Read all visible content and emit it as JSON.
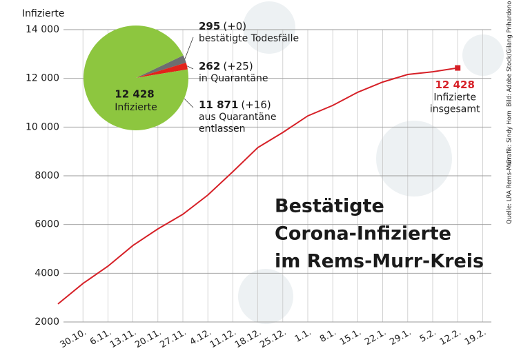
{
  "chart_data": [
    {
      "type": "line",
      "title": [
        "Bestätigte",
        "Corona-Infizierte",
        "im Rems-Murr-Kreis"
      ],
      "y_label": "Infizierte",
      "categories": [
        null,
        "30.10.",
        "6.11.",
        "13.11.",
        "20.11.",
        "27.11.",
        "4.12.",
        "11.12.",
        "18.12.",
        "25.12.",
        "1.1.",
        "8.1.",
        "15.1.",
        "22.1.",
        "29.1.",
        "5.2.",
        "12.2.",
        "19.2."
      ],
      "values": [
        2740,
        3580,
        4290,
        5140,
        5820,
        6420,
        7210,
        8170,
        9160,
        9780,
        10460,
        10890,
        11430,
        11850,
        12160,
        12270,
        12428,
        null
      ],
      "value_labels": [
        null,
        null,
        null,
        null,
        null,
        null,
        null,
        null,
        null,
        null,
        null,
        null,
        null,
        null,
        null,
        null,
        "12 428",
        null
      ],
      "annotation": [
        "Infizierte",
        "insgesamt"
      ],
      "color": "#d62027",
      "ylim": [
        2000,
        14000
      ],
      "yticks": [
        2000,
        4000,
        6000,
        8000,
        {
          "value": 10000,
          "label": "10 000"
        },
        {
          "value": 12000,
          "label": "12 000"
        },
        {
          "value": 14000,
          "label": "14 000"
        }
      ],
      "grid": true,
      "credits": [
        "Quelle: LRA Rems-Murr",
        "Grafik: Sindy Horn",
        "Bild: Adobe Stock/Gilang Prihardono"
      ]
    },
    {
      "type": "pie",
      "values": [
        295,
        262,
        11871
      ],
      "value_labels": [
        "295",
        "262",
        "11 871"
      ],
      "changes": [
        "(+0)",
        "(+25)",
        "(+16)"
      ],
      "descriptions": [
        [
          "bestätigte Todesfälle"
        ],
        [
          "in Quarantäne"
        ],
        [
          "aus Quarantäne",
          "entlassen"
        ]
      ],
      "colors": [
        "#6d6e70",
        "#e2231a",
        "#8dc63f"
      ],
      "center_label": "12 428",
      "center_text": "Infizierte"
    }
  ]
}
